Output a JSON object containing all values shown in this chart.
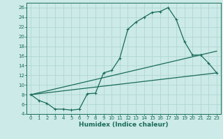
{
  "xlabel": "Humidex (Indice chaleur)",
  "bg_color": "#cceae7",
  "line_color": "#1a6b5a",
  "grid_color": "#aad4d0",
  "xlim": [
    -0.5,
    23.5
  ],
  "ylim": [
    4,
    27
  ],
  "xticks": [
    0,
    1,
    2,
    3,
    4,
    5,
    6,
    7,
    8,
    9,
    10,
    11,
    12,
    13,
    14,
    15,
    16,
    17,
    18,
    19,
    20,
    21,
    22,
    23
  ],
  "yticks": [
    4,
    6,
    8,
    10,
    12,
    14,
    16,
    18,
    20,
    22,
    24,
    26
  ],
  "line1_x": [
    0,
    1,
    2,
    3,
    4,
    5,
    6,
    7,
    8,
    9,
    10,
    11,
    12,
    13,
    14,
    15,
    16,
    17,
    18,
    19,
    20,
    21,
    22,
    23
  ],
  "line1_y": [
    8.0,
    6.8,
    6.2,
    5.0,
    5.0,
    4.8,
    5.0,
    8.2,
    8.3,
    12.5,
    13.0,
    15.5,
    21.5,
    23.0,
    24.0,
    25.0,
    25.2,
    26.0,
    23.5,
    19.0,
    16.2,
    16.2,
    14.5,
    12.5
  ],
  "line2_x": [
    0,
    23
  ],
  "line2_y": [
    8.0,
    12.5
  ],
  "line3_x": [
    0,
    23
  ],
  "line3_y": [
    8.0,
    17.0
  ],
  "marker_size": 3.5,
  "lw": 0.9,
  "xlabel_fontsize": 6.5,
  "tick_fontsize": 5.0
}
